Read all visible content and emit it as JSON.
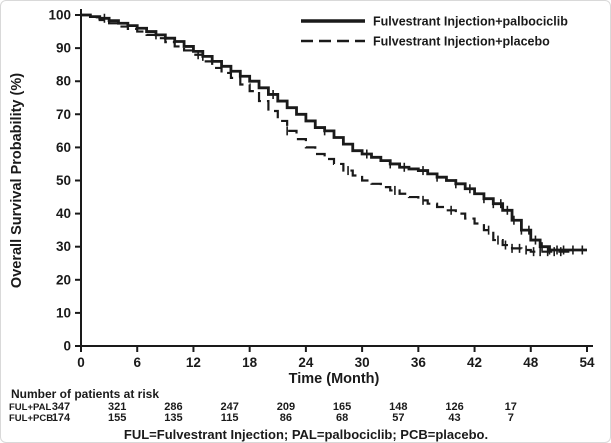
{
  "chart_data": {
    "type": "line",
    "subtype": "kaplan-meier-step",
    "title": "",
    "xlabel": "Time (Month)",
    "ylabel": "Overall Survival Probability (%)",
    "xlim": [
      0,
      54
    ],
    "ylim": [
      0,
      100
    ],
    "xticks": [
      0,
      6,
      12,
      18,
      24,
      30,
      36,
      42,
      48,
      54
    ],
    "yticks": [
      0,
      10,
      20,
      30,
      40,
      50,
      60,
      70,
      80,
      90,
      100
    ],
    "grid": false,
    "legend_position": "top-right",
    "ink_color": "#1a1a1a",
    "series": [
      {
        "id": "palbociclib",
        "name": "Fulvestrant Injection+palbociclib",
        "line_style": "solid",
        "color": "#1a1a1a",
        "points": [
          [
            0,
            100
          ],
          [
            1,
            99.5
          ],
          [
            2,
            99
          ],
          [
            3,
            98.3
          ],
          [
            4,
            97.5
          ],
          [
            5,
            96.8
          ],
          [
            6,
            96
          ],
          [
            7,
            95
          ],
          [
            8,
            94
          ],
          [
            9,
            93
          ],
          [
            10,
            92
          ],
          [
            11,
            90.5
          ],
          [
            12,
            89
          ],
          [
            13,
            87.5
          ],
          [
            14,
            86
          ],
          [
            15,
            84.5
          ],
          [
            16,
            83
          ],
          [
            17,
            81.5
          ],
          [
            18,
            80
          ],
          [
            19,
            78
          ],
          [
            20,
            76
          ],
          [
            21,
            74
          ],
          [
            22,
            72
          ],
          [
            23,
            70
          ],
          [
            24,
            68
          ],
          [
            25,
            66
          ],
          [
            26,
            65
          ],
          [
            27,
            63
          ],
          [
            28,
            61
          ],
          [
            29,
            59
          ],
          [
            30,
            58
          ],
          [
            31,
            57
          ],
          [
            32,
            56
          ],
          [
            33,
            55
          ],
          [
            34,
            54
          ],
          [
            35,
            53.5
          ],
          [
            36,
            53
          ],
          [
            37,
            52
          ],
          [
            38,
            51
          ],
          [
            39,
            50
          ],
          [
            40,
            49
          ],
          [
            41,
            47.5
          ],
          [
            42,
            46
          ],
          [
            43,
            44.5
          ],
          [
            44,
            43
          ],
          [
            45,
            41
          ],
          [
            46,
            38
          ],
          [
            47,
            35
          ],
          [
            48,
            32
          ],
          [
            49,
            30
          ],
          [
            50,
            29
          ],
          [
            54,
            29
          ]
        ],
        "censor_x": [
          2.5,
          8,
          13,
          20.5,
          26,
          30.5,
          33,
          34.5,
          36.5,
          38,
          40,
          41.5,
          43,
          44,
          44.8,
          45.5,
          46.2,
          47,
          47.8,
          48.5,
          49.2,
          50,
          50.8,
          51.5,
          52.5,
          53.5
        ]
      },
      {
        "id": "placebo",
        "name": "Fulvestrant Injection+placebo",
        "line_style": "dashed",
        "color": "#1a1a1a",
        "points": [
          [
            0,
            100
          ],
          [
            1,
            99.3
          ],
          [
            2,
            98.5
          ],
          [
            3,
            97.5
          ],
          [
            4,
            96.5
          ],
          [
            5,
            95.8
          ],
          [
            6,
            95
          ],
          [
            7,
            94
          ],
          [
            8,
            93
          ],
          [
            9,
            91.8
          ],
          [
            10,
            90.5
          ],
          [
            11,
            89.3
          ],
          [
            12,
            88
          ],
          [
            13,
            86
          ],
          [
            14,
            84
          ],
          [
            15,
            82.5
          ],
          [
            16,
            81
          ],
          [
            17,
            79
          ],
          [
            18,
            77
          ],
          [
            19,
            74
          ],
          [
            20,
            71
          ],
          [
            21,
            68
          ],
          [
            22,
            65
          ],
          [
            23,
            62.5
          ],
          [
            24,
            60
          ],
          [
            25,
            58
          ],
          [
            26,
            56.5
          ],
          [
            27,
            55
          ],
          [
            28,
            53
          ],
          [
            29,
            51.5
          ],
          [
            30,
            50
          ],
          [
            31,
            49
          ],
          [
            32,
            48
          ],
          [
            33,
            47
          ],
          [
            34,
            46
          ],
          [
            35,
            45
          ],
          [
            36,
            44
          ],
          [
            37,
            43
          ],
          [
            38,
            42
          ],
          [
            39,
            41
          ],
          [
            40,
            40
          ],
          [
            41,
            38.5
          ],
          [
            42,
            37
          ],
          [
            43,
            35
          ],
          [
            44,
            32
          ],
          [
            45,
            30.5
          ],
          [
            46,
            29.5
          ],
          [
            47,
            29
          ],
          [
            48,
            28.5
          ],
          [
            52,
            28
          ]
        ],
        "censor_x": [
          12.5,
          22,
          28.5,
          33.5,
          36.5,
          39.5,
          43.5,
          44.5,
          45.3,
          46,
          46.8,
          47.5,
          48.3,
          49,
          49.8,
          50.5,
          51.2
        ]
      }
    ],
    "risk_table": {
      "header": "Number of patients at risk",
      "times": [
        0,
        6,
        12,
        18,
        24,
        30,
        36,
        42,
        48
      ],
      "rows": [
        {
          "label": "FUL+PAL",
          "counts": [
            347,
            321,
            286,
            247,
            209,
            165,
            148,
            126,
            17
          ]
        },
        {
          "label": "FUL+PCB",
          "counts": [
            174,
            155,
            135,
            115,
            86,
            68,
            57,
            43,
            7
          ]
        }
      ]
    },
    "footnote": "FUL=Fulvestrant Injection; PAL=palbociclib; PCB=placebo."
  }
}
